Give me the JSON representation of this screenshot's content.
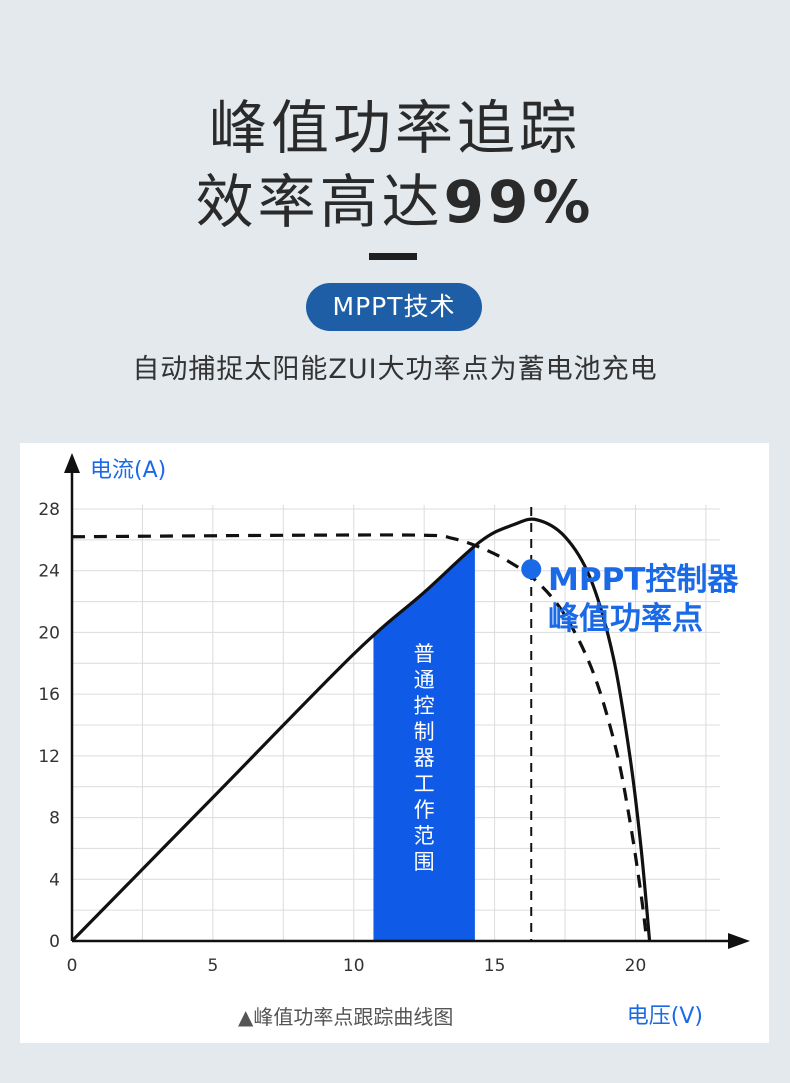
{
  "header": {
    "title_line1": "峰值功率追踪",
    "title_line2_text": "效率高达",
    "title_line2_value": "99%",
    "badge": "MPPT技术",
    "subtitle": "自动捕捉太阳能ZUI大功率点为蓄电池充电"
  },
  "chart_data": {
    "type": "line",
    "ylabel": "电流(A)",
    "xlabel": "电压(V)",
    "caption": "▲峰值功率点跟踪曲线图",
    "x_ticks": [
      0,
      5,
      10,
      15,
      20
    ],
    "y_ticks": [
      0,
      4,
      8,
      12,
      16,
      20,
      24,
      28
    ],
    "xlim": [
      0,
      23
    ],
    "ylim": [
      0,
      28
    ],
    "grid": true,
    "series": [
      {
        "style": "solid",
        "color": "#111111",
        "points": [
          [
            0,
            0
          ],
          [
            5,
            9.3
          ],
          [
            10,
            18.6
          ],
          [
            12.5,
            22.6
          ],
          [
            14.5,
            25.9
          ],
          [
            15.7,
            27.0
          ],
          [
            16.5,
            27.3
          ],
          [
            17.5,
            26.2
          ],
          [
            18.4,
            23.5
          ],
          [
            19.2,
            18.5
          ],
          [
            19.8,
            12.0
          ],
          [
            20.2,
            6.0
          ],
          [
            20.5,
            0
          ]
        ]
      },
      {
        "style": "dashed",
        "color": "#111111",
        "points": [
          [
            0,
            26.2
          ],
          [
            8,
            26.3
          ],
          [
            12.5,
            26.3
          ],
          [
            13.5,
            26.1
          ],
          [
            14.5,
            25.5
          ],
          [
            15.5,
            24.6
          ],
          [
            16.5,
            23.3
          ],
          [
            17.5,
            21.1
          ],
          [
            18.5,
            17.4
          ],
          [
            19.3,
            12.5
          ],
          [
            19.8,
            7.8
          ],
          [
            20.2,
            3.0
          ],
          [
            20.4,
            0
          ]
        ]
      }
    ],
    "shaded_band": {
      "label": "普通控制器工作范围",
      "x_start": 10.7,
      "x_end": 14.3,
      "color": "#0f5be8"
    },
    "mppt_point": {
      "x": 16.3,
      "y": 24.1,
      "label_line1": "MPPT控制器",
      "label_line2": "峰值功率点",
      "color": "#1a6ae8"
    }
  }
}
